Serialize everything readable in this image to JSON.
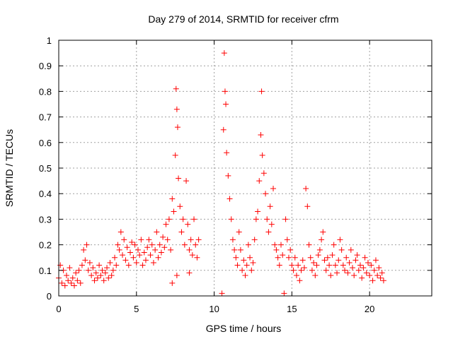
{
  "chart_data": {
    "type": "scatter",
    "title": "Day 279 of 2014, SRMTID for receiver cfrm",
    "xlabel": "GPS time / hours",
    "ylabel": "SRMTID / TECUs",
    "xlim": [
      0,
      24
    ],
    "ylim": [
      0,
      1
    ],
    "xticks": [
      0,
      5,
      10,
      15,
      20
    ],
    "yticks": [
      0,
      0.1,
      0.2,
      0.3,
      0.4,
      0.5,
      0.6,
      0.7,
      0.8,
      0.9,
      1
    ],
    "ytick_labels": [
      "0",
      "0.1",
      "0.2",
      "0.3",
      "0.4",
      "0.5",
      "0.6",
      "0.7",
      "0.8",
      "0.9",
      "1"
    ],
    "grid": true,
    "marker": "plus",
    "color": "#ff0000",
    "series": [
      {
        "name": "SRMTID",
        "points": [
          [
            0.0,
            0.07
          ],
          [
            0.1,
            0.12
          ],
          [
            0.2,
            0.05
          ],
          [
            0.3,
            0.1
          ],
          [
            0.4,
            0.04
          ],
          [
            0.5,
            0.08
          ],
          [
            0.6,
            0.06
          ],
          [
            0.7,
            0.11
          ],
          [
            0.8,
            0.05
          ],
          [
            0.9,
            0.07
          ],
          [
            1.0,
            0.04
          ],
          [
            1.1,
            0.09
          ],
          [
            1.2,
            0.06
          ],
          [
            1.3,
            0.1
          ],
          [
            1.4,
            0.05
          ],
          [
            1.5,
            0.12
          ],
          [
            1.6,
            0.18
          ],
          [
            1.7,
            0.14
          ],
          [
            1.8,
            0.2
          ],
          [
            1.9,
            0.1
          ],
          [
            2.0,
            0.13
          ],
          [
            2.1,
            0.08
          ],
          [
            2.2,
            0.11
          ],
          [
            2.3,
            0.06
          ],
          [
            2.4,
            0.09
          ],
          [
            2.5,
            0.07
          ],
          [
            2.6,
            0.12
          ],
          [
            2.7,
            0.08
          ],
          [
            2.8,
            0.1
          ],
          [
            2.9,
            0.06
          ],
          [
            3.0,
            0.09
          ],
          [
            3.1,
            0.11
          ],
          [
            3.2,
            0.07
          ],
          [
            3.3,
            0.13
          ],
          [
            3.4,
            0.08
          ],
          [
            3.5,
            0.1
          ],
          [
            3.6,
            0.15
          ],
          [
            3.7,
            0.12
          ],
          [
            3.8,
            0.2
          ],
          [
            3.9,
            0.18
          ],
          [
            4.0,
            0.25
          ],
          [
            4.1,
            0.16
          ],
          [
            4.2,
            0.22
          ],
          [
            4.3,
            0.14
          ],
          [
            4.4,
            0.19
          ],
          [
            4.5,
            0.12
          ],
          [
            4.6,
            0.17
          ],
          [
            4.7,
            0.21
          ],
          [
            4.8,
            0.15
          ],
          [
            4.9,
            0.2
          ],
          [
            5.0,
            0.13
          ],
          [
            5.1,
            0.18
          ],
          [
            5.2,
            0.16
          ],
          [
            5.3,
            0.22
          ],
          [
            5.4,
            0.12
          ],
          [
            5.5,
            0.17
          ],
          [
            5.6,
            0.14
          ],
          [
            5.7,
            0.19
          ],
          [
            5.8,
            0.22
          ],
          [
            5.9,
            0.16
          ],
          [
            6.0,
            0.2
          ],
          [
            6.1,
            0.13
          ],
          [
            6.2,
            0.18
          ],
          [
            6.3,
            0.25
          ],
          [
            6.4,
            0.15
          ],
          [
            6.5,
            0.2
          ],
          [
            6.6,
            0.17
          ],
          [
            6.7,
            0.23
          ],
          [
            6.8,
            0.19
          ],
          [
            6.9,
            0.28
          ],
          [
            7.0,
            0.22
          ],
          [
            7.1,
            0.3
          ],
          [
            7.2,
            0.18
          ],
          [
            7.3,
            0.38
          ],
          [
            7.4,
            0.33
          ],
          [
            7.5,
            0.55
          ],
          [
            7.55,
            0.81
          ],
          [
            7.6,
            0.73
          ],
          [
            7.65,
            0.66
          ],
          [
            7.7,
            0.46
          ],
          [
            7.8,
            0.35
          ],
          [
            7.9,
            0.25
          ],
          [
            8.0,
            0.3
          ],
          [
            8.1,
            0.2
          ],
          [
            8.2,
            0.45
          ],
          [
            8.3,
            0.28
          ],
          [
            8.4,
            0.18
          ],
          [
            8.5,
            0.22
          ],
          [
            8.6,
            0.16
          ],
          [
            8.7,
            0.3
          ],
          [
            8.8,
            0.2
          ],
          [
            8.9,
            0.15
          ],
          [
            9.0,
            0.22
          ],
          [
            7.3,
            0.05
          ],
          [
            7.6,
            0.08
          ],
          [
            8.4,
            0.09
          ],
          [
            10.5,
            0.01
          ],
          [
            10.6,
            0.65
          ],
          [
            10.65,
            0.95
          ],
          [
            10.7,
            0.8
          ],
          [
            10.75,
            0.75
          ],
          [
            10.8,
            0.56
          ],
          [
            10.9,
            0.47
          ],
          [
            11.0,
            0.38
          ],
          [
            11.1,
            0.3
          ],
          [
            11.2,
            0.22
          ],
          [
            11.3,
            0.18
          ],
          [
            11.4,
            0.15
          ],
          [
            11.5,
            0.12
          ],
          [
            11.6,
            0.25
          ],
          [
            11.7,
            0.18
          ],
          [
            11.8,
            0.1
          ],
          [
            11.9,
            0.14
          ],
          [
            12.0,
            0.08
          ],
          [
            12.1,
            0.12
          ],
          [
            12.2,
            0.2
          ],
          [
            12.3,
            0.15
          ],
          [
            12.4,
            0.1
          ],
          [
            12.5,
            0.13
          ],
          [
            12.6,
            0.22
          ],
          [
            12.7,
            0.3
          ],
          [
            12.8,
            0.33
          ],
          [
            12.9,
            0.45
          ],
          [
            13.0,
            0.63
          ],
          [
            13.05,
            0.8
          ],
          [
            13.1,
            0.55
          ],
          [
            13.2,
            0.48
          ],
          [
            13.3,
            0.4
          ],
          [
            13.4,
            0.3
          ],
          [
            13.5,
            0.25
          ],
          [
            13.6,
            0.35
          ],
          [
            13.7,
            0.28
          ],
          [
            13.8,
            0.42
          ],
          [
            13.9,
            0.2
          ],
          [
            14.0,
            0.18
          ],
          [
            14.1,
            0.15
          ],
          [
            14.2,
            0.12
          ],
          [
            14.3,
            0.2
          ],
          [
            14.4,
            0.16
          ],
          [
            14.5,
            0.01
          ],
          [
            14.6,
            0.3
          ],
          [
            14.7,
            0.22
          ],
          [
            14.8,
            0.15
          ],
          [
            14.9,
            0.18
          ],
          [
            15.0,
            0.12
          ],
          [
            15.1,
            0.1
          ],
          [
            15.2,
            0.15
          ],
          [
            15.3,
            0.08
          ],
          [
            15.4,
            0.12
          ],
          [
            15.5,
            0.06
          ],
          [
            15.6,
            0.1
          ],
          [
            15.7,
            0.14
          ],
          [
            15.8,
            0.11
          ],
          [
            15.9,
            0.42
          ],
          [
            16.0,
            0.35
          ],
          [
            16.1,
            0.2
          ],
          [
            16.2,
            0.15
          ],
          [
            16.3,
            0.1
          ],
          [
            16.4,
            0.13
          ],
          [
            16.5,
            0.08
          ],
          [
            16.6,
            0.12
          ],
          [
            16.7,
            0.16
          ],
          [
            16.8,
            0.18
          ],
          [
            16.9,
            0.22
          ],
          [
            17.0,
            0.25
          ],
          [
            17.1,
            0.14
          ],
          [
            17.2,
            0.1
          ],
          [
            17.3,
            0.15
          ],
          [
            17.4,
            0.12
          ],
          [
            17.5,
            0.08
          ],
          [
            17.6,
            0.16
          ],
          [
            17.7,
            0.2
          ],
          [
            17.8,
            0.12
          ],
          [
            17.9,
            0.09
          ],
          [
            18.0,
            0.14
          ],
          [
            18.1,
            0.22
          ],
          [
            18.2,
            0.18
          ],
          [
            18.3,
            0.12
          ],
          [
            18.4,
            0.1
          ],
          [
            18.5,
            0.15
          ],
          [
            18.6,
            0.09
          ],
          [
            18.7,
            0.13
          ],
          [
            18.8,
            0.18
          ],
          [
            18.9,
            0.11
          ],
          [
            19.0,
            0.08
          ],
          [
            19.1,
            0.14
          ],
          [
            19.2,
            0.16
          ],
          [
            19.3,
            0.1
          ],
          [
            19.4,
            0.12
          ],
          [
            19.5,
            0.07
          ],
          [
            19.6,
            0.11
          ],
          [
            19.7,
            0.15
          ],
          [
            19.8,
            0.09
          ],
          [
            19.9,
            0.13
          ],
          [
            20.0,
            0.08
          ],
          [
            20.1,
            0.12
          ],
          [
            20.2,
            0.06
          ],
          [
            20.3,
            0.1
          ],
          [
            20.4,
            0.14
          ],
          [
            20.5,
            0.08
          ],
          [
            20.6,
            0.11
          ],
          [
            20.7,
            0.07
          ],
          [
            20.8,
            0.09
          ],
          [
            20.9,
            0.06
          ]
        ]
      }
    ]
  }
}
